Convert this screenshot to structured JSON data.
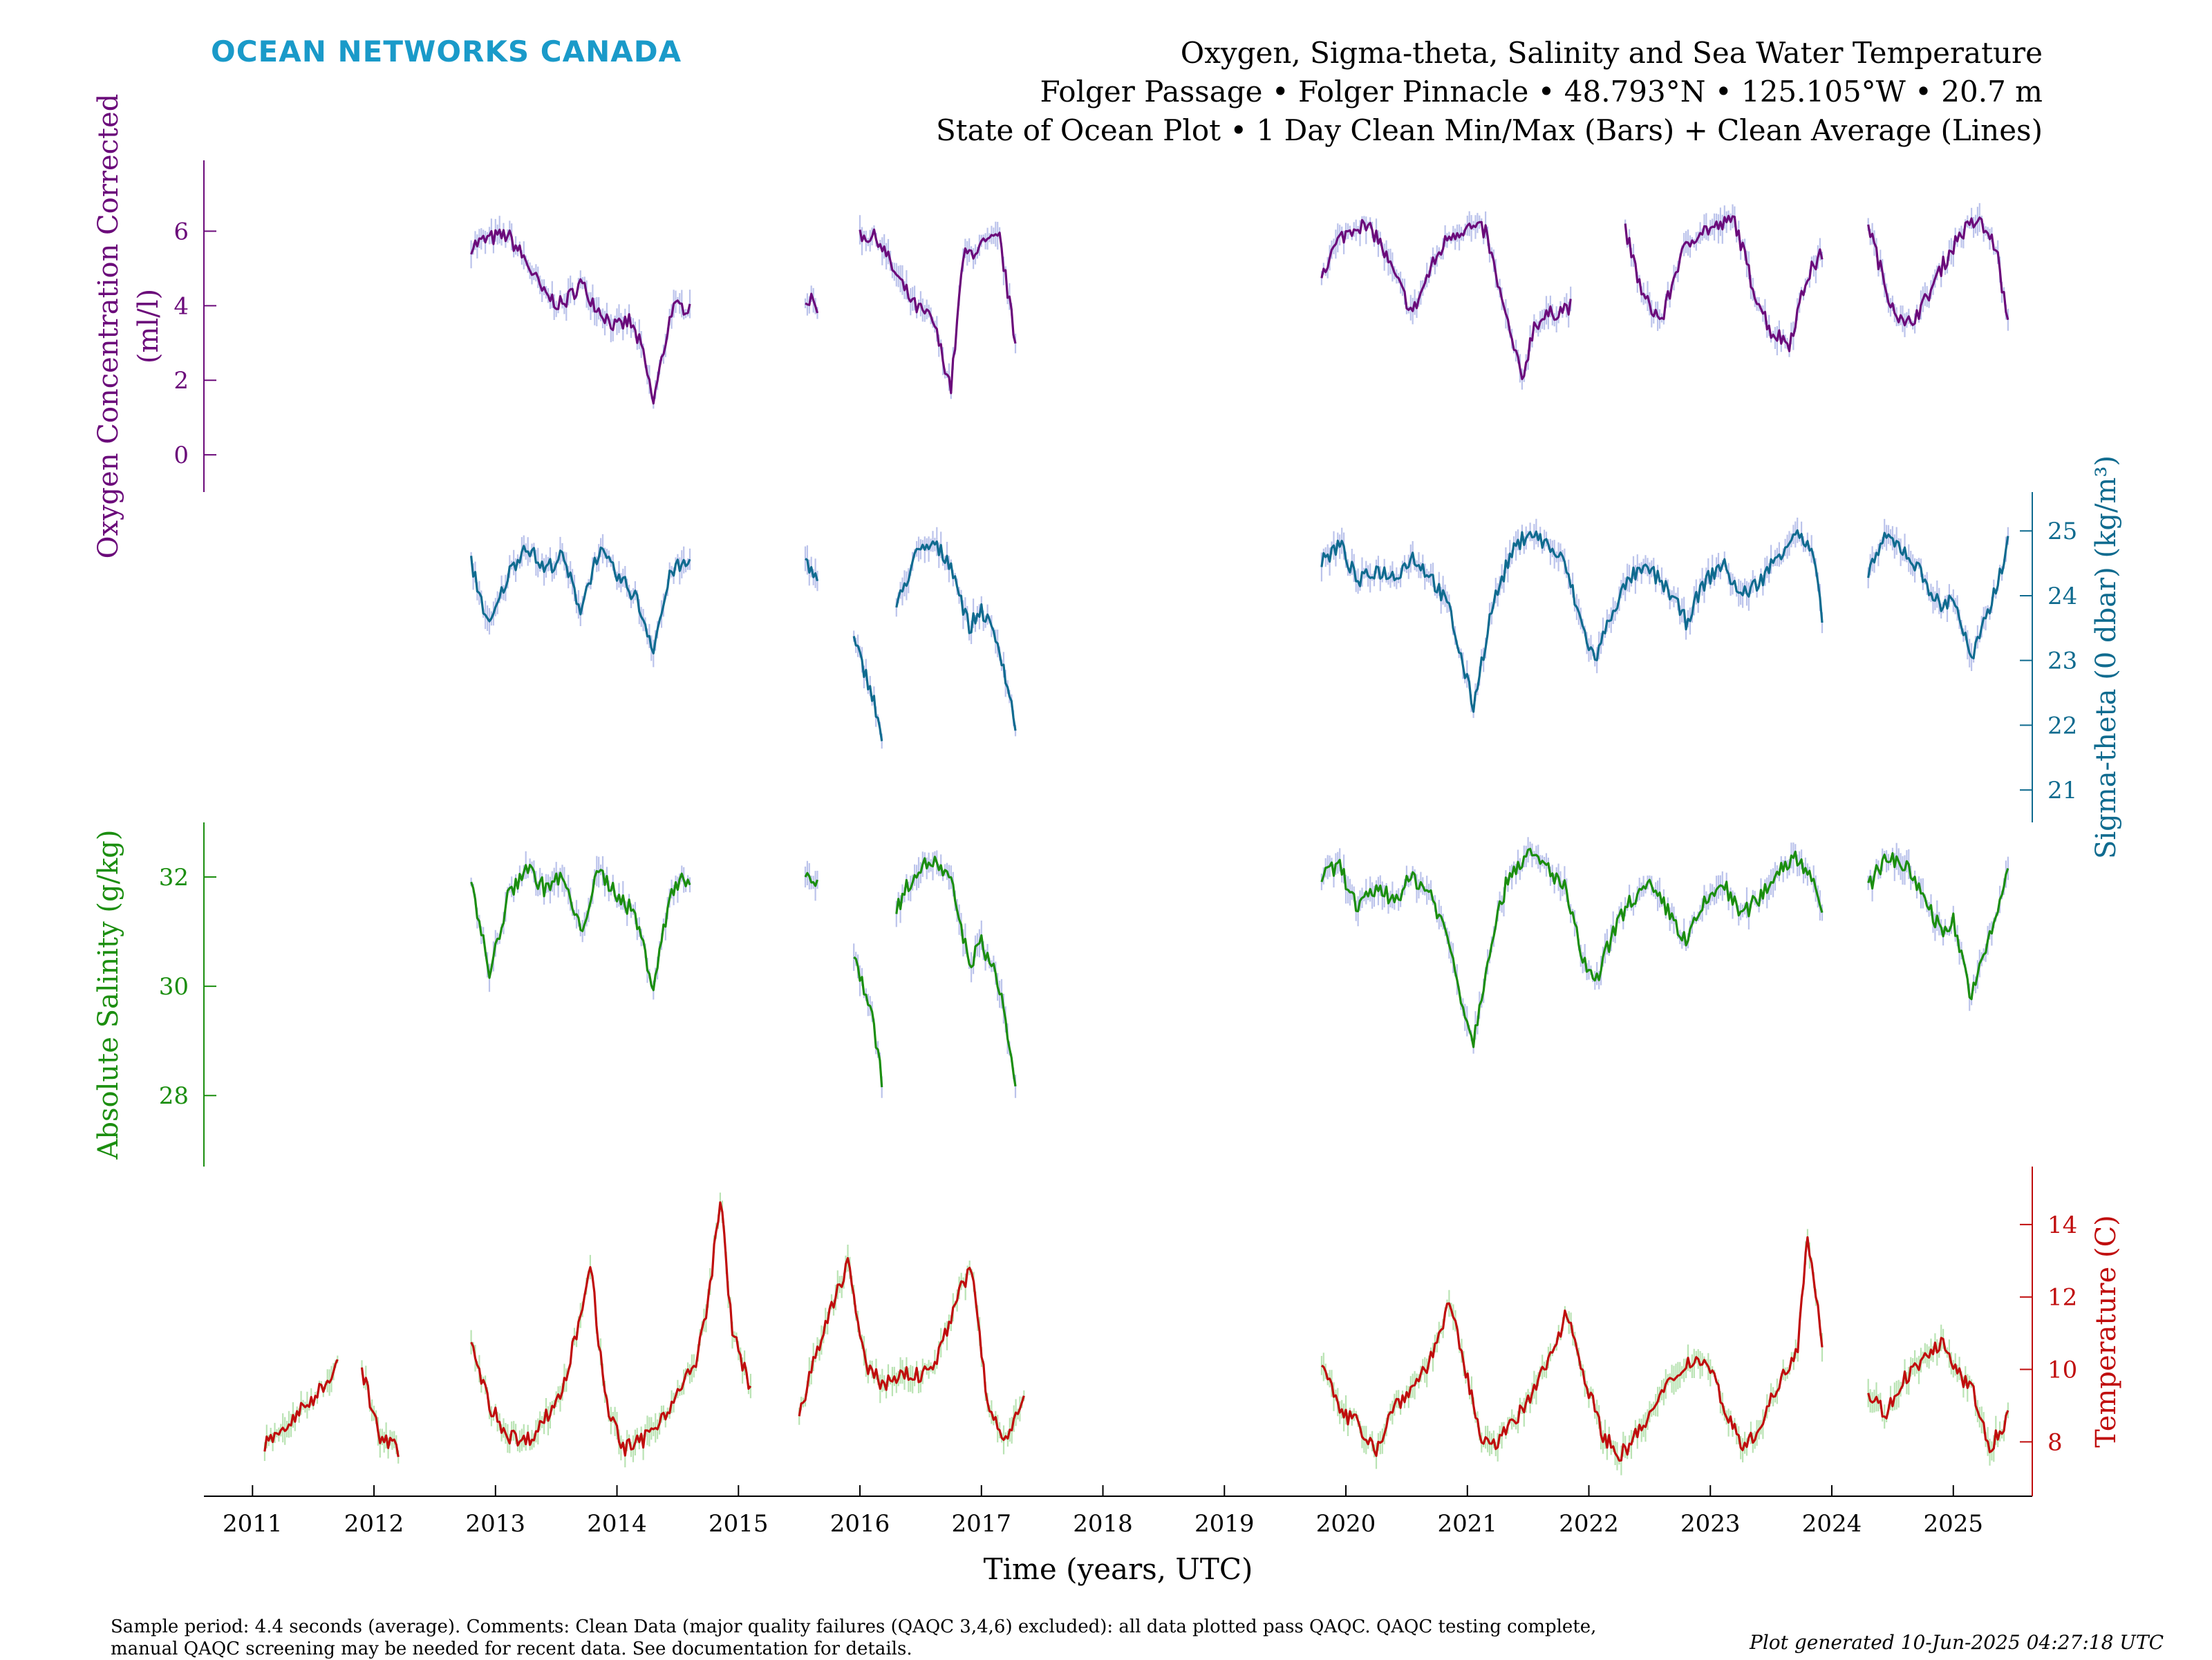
{
  "brand": {
    "text": "OCEAN NETWORKS CANADA",
    "color": "#1a9ac9"
  },
  "title": {
    "line1": "Oxygen, Sigma-theta, Salinity and Sea Water Temperature",
    "line2": "Folger Passage • Folger Pinnacle • 48.793°N • 125.105°W • 20.7 m",
    "line3": "State of Ocean Plot • 1 Day Clean Min/Max (Bars) + Clean Average (Lines)"
  },
  "footnote": {
    "line1": "Sample period: 4.4 seconds (average). Comments: Clean Data (major quality failures (QAQC 3,4,6) excluded): all data plotted pass QAQC. QAQC testing complete,",
    "line2": "manual QAQC screening may be needed for recent data. See documentation for details."
  },
  "generated": "Plot generated 10-Jun-2025 04:27:18 UTC",
  "chart_data": {
    "type": "line",
    "xlabel": "Time (years, UTC)",
    "xlim": [
      2010.6,
      2025.65
    ],
    "x_ticks": [
      "2011",
      "2012",
      "2013",
      "2014",
      "2015",
      "2016",
      "2017",
      "2018",
      "2019",
      "2020",
      "2021",
      "2022",
      "2023",
      "2024",
      "2025"
    ],
    "x_tick_values": [
      2011,
      2012,
      2013,
      2014,
      2015,
      2016,
      2017,
      2018,
      2019,
      2020,
      2021,
      2022,
      2023,
      2024,
      2025
    ],
    "grid": false,
    "panels": [
      {
        "name": "oxygen",
        "ylabel": "Oxygen Concentration Corrected (ml/l)",
        "ylabel_lines": [
          "Oxygen Concentration Corrected",
          "(ml/l)"
        ],
        "axis_side": "left",
        "color": "#6b0a7a",
        "band_color": "#aab4e6",
        "ylim": [
          -1,
          7.9
        ],
        "ticks": [
          0,
          2,
          4,
          6
        ],
        "tick_labels": [
          "0",
          "2",
          "4",
          "6"
        ],
        "series": [
          {
            "x": [
              2012.8,
              2012.95,
              2013.1,
              2013.25,
              2013.4,
              2013.55,
              2013.7,
              2013.85,
              2014.0,
              2014.1,
              2014.2,
              2014.3,
              2014.45,
              2014.6,
              null,
              2015.55,
              2015.65,
              null,
              2016.0,
              2016.15,
              2016.3,
              2016.45,
              2016.6,
              2016.75,
              2016.85,
              2017.0,
              2017.15,
              2017.28,
              null,
              2019.8,
              2019.95,
              2020.1,
              2020.25,
              2020.4,
              2020.55,
              2020.7,
              2020.85,
              2021.0,
              2021.15,
              2021.3,
              2021.45,
              2021.55,
              2021.7,
              2021.85,
              2021.95,
              null,
              2022.3,
              2022.45,
              2022.6,
              2022.75,
              2022.9,
              2023.05,
              2023.2,
              2023.35,
              2023.5,
              2023.65,
              2023.8,
              2023.92,
              null,
              2024.3,
              2024.45,
              2024.6,
              2024.75,
              2024.9,
              2025.05,
              2025.2,
              2025.35,
              2025.45
            ],
            "y": [
              5.6,
              5.8,
              5.9,
              5.2,
              4.3,
              4.0,
              4.6,
              3.9,
              3.4,
              3.6,
              2.9,
              1.4,
              3.9,
              4.0,
              null,
              4.2,
              4.0,
              null,
              5.9,
              5.8,
              4.8,
              4.0,
              3.6,
              1.8,
              5.3,
              5.6,
              5.8,
              3.0,
              null,
              4.9,
              5.8,
              6.2,
              5.9,
              4.8,
              3.8,
              5.0,
              5.9,
              6.1,
              6.0,
              3.9,
              2.0,
              3.5,
              3.8,
              4.0,
              null,
              null,
              6.0,
              4.2,
              3.6,
              5.3,
              6.0,
              6.1,
              6.3,
              4.5,
              3.3,
              3.0,
              4.8,
              5.4,
              null,
              6.2,
              4.4,
              3.4,
              4.0,
              5.0,
              5.9,
              6.3,
              5.6,
              3.5
            ],
            "segments_break_on_null": true
          }
        ]
      },
      {
        "name": "sigma-theta",
        "ylabel": "Sigma-theta (0 dbar) (kg/m³)",
        "axis_side": "right",
        "color": "#0f6b8f",
        "band_color": "#aab4e6",
        "ylim": [
          20.5,
          25.6
        ],
        "ticks": [
          21,
          22,
          23,
          24,
          25
        ],
        "tick_labels": [
          "21",
          "22",
          "23",
          "24",
          "25"
        ],
        "series": [
          {
            "x": [
              2012.8,
              2012.95,
              2013.1,
              2013.25,
              2013.4,
              2013.55,
              2013.7,
              2013.85,
              2014.0,
              2014.15,
              2014.3,
              2014.45,
              2014.6,
              null,
              2015.55,
              2015.65,
              null,
              2015.95,
              2016.1,
              2016.18,
              null,
              2016.3,
              2016.45,
              2016.6,
              2016.75,
              2016.9,
              2017.0,
              2017.15,
              2017.28,
              null,
              2019.8,
              2019.95,
              2020.1,
              2020.25,
              2020.4,
              2020.55,
              2020.7,
              2020.85,
              2020.98,
              2021.05,
              2021.2,
              2021.35,
              2021.5,
              2021.65,
              2021.8,
              2021.95,
              2022.05,
              2022.2,
              2022.35,
              2022.5,
              2022.65,
              2022.8,
              2022.95,
              2023.1,
              2023.25,
              2023.4,
              2023.55,
              2023.7,
              2023.85,
              2023.92,
              null,
              2024.3,
              2024.45,
              2024.6,
              2024.75,
              2024.9,
              2025.0,
              2025.15,
              2025.3,
              2025.45
            ],
            "y": [
              24.5,
              23.5,
              24.3,
              24.8,
              24.4,
              24.6,
              23.8,
              24.7,
              24.3,
              24.0,
              23.2,
              24.4,
              24.5,
              null,
              24.6,
              24.2,
              null,
              23.3,
              22.5,
              21.8,
              null,
              23.8,
              24.6,
              24.8,
              24.5,
              23.5,
              23.8,
              23.2,
              22.0,
              null,
              24.5,
              24.8,
              24.2,
              24.4,
              24.3,
              24.6,
              24.3,
              23.8,
              22.8,
              22.3,
              23.8,
              24.6,
              25.0,
              24.8,
              24.5,
              23.5,
              23.0,
              23.8,
              24.3,
              24.4,
              24.1,
              23.6,
              24.2,
              24.5,
              24.0,
              24.2,
              24.6,
              25.0,
              24.6,
              23.6,
              null,
              24.4,
              24.9,
              24.7,
              24.3,
              23.8,
              24.0,
              23.0,
              23.8,
              24.8
            ],
            "segments_break_on_null": true
          }
        ]
      },
      {
        "name": "salinity",
        "ylabel": "Absolute Salinity (g/kg)",
        "axis_side": "left",
        "color": "#1b8e0f",
        "band_color": "#aab4e6",
        "ylim": [
          26.7,
          33.0
        ],
        "ticks": [
          28,
          30,
          32
        ],
        "tick_labels": [
          "28",
          "30",
          "32"
        ],
        "series": [
          {
            "x": [
              2012.8,
              2012.95,
              2013.1,
              2013.25,
              2013.4,
              2013.55,
              2013.7,
              2013.85,
              2014.0,
              2014.15,
              2014.3,
              2014.45,
              2014.6,
              null,
              2015.55,
              2015.65,
              null,
              2015.95,
              2016.1,
              2016.18,
              null,
              2016.3,
              2016.45,
              2016.6,
              2016.75,
              2016.9,
              2017.0,
              2017.15,
              2017.28,
              null,
              2019.8,
              2019.95,
              2020.1,
              2020.25,
              2020.4,
              2020.55,
              2020.7,
              2020.85,
              2020.98,
              2021.05,
              2021.2,
              2021.35,
              2021.5,
              2021.65,
              2021.8,
              2021.95,
              2022.05,
              2022.2,
              2022.35,
              2022.5,
              2022.65,
              2022.8,
              2022.95,
              2023.1,
              2023.25,
              2023.4,
              2023.55,
              2023.7,
              2023.85,
              2023.92,
              null,
              2024.3,
              2024.45,
              2024.6,
              2024.75,
              2024.9,
              2025.0,
              2025.15,
              2025.3,
              2025.45
            ],
            "y": [
              32.0,
              30.2,
              31.6,
              32.2,
              31.8,
              32.0,
              31.0,
              32.1,
              31.7,
              31.3,
              30.0,
              31.8,
              32.0,
              null,
              32.1,
              31.8,
              null,
              30.6,
              29.5,
              28.3,
              null,
              31.4,
              32.1,
              32.3,
              31.9,
              30.4,
              30.8,
              30.0,
              28.2,
              null,
              32.0,
              32.2,
              31.4,
              31.8,
              31.6,
              32.0,
              31.7,
              30.8,
              29.5,
              29.0,
              30.9,
              32.1,
              32.4,
              32.2,
              31.8,
              30.5,
              30.0,
              31.0,
              31.6,
              31.8,
              31.4,
              30.8,
              31.5,
              31.9,
              31.3,
              31.6,
              32.1,
              32.4,
              32.0,
              31.2,
              null,
              31.8,
              32.4,
              32.2,
              31.7,
              31.0,
              31.2,
              29.8,
              30.9,
              32.1
            ],
            "segments_break_on_null": true
          }
        ]
      },
      {
        "name": "temperature",
        "ylabel": "Temperature (C)",
        "axis_side": "right",
        "color": "#c00d0d",
        "band_color": "#a8dca0",
        "ylim": [
          6.5,
          15.6
        ],
        "ticks": [
          8,
          10,
          12,
          14
        ],
        "tick_labels": [
          "8",
          "10",
          "12",
          "14"
        ],
        "series": [
          {
            "x": [
              2011.1,
              2011.3,
              2011.5,
              2011.7,
              null,
              2011.9,
              2012.05,
              2012.2,
              null,
              2012.8,
              2012.95,
              2013.1,
              2013.25,
              2013.4,
              2013.55,
              2013.7,
              2013.78,
              2013.9,
              2014.05,
              2014.2,
              2014.35,
              2014.5,
              2014.65,
              2014.75,
              2014.85,
              2014.95,
              2015.1,
              null,
              2015.5,
              2015.65,
              2015.8,
              2015.9,
              2016.05,
              2016.2,
              2016.35,
              2016.5,
              2016.65,
              2016.8,
              2016.92,
              2017.05,
              2017.2,
              2017.35,
              null,
              2019.8,
              2019.95,
              2020.1,
              2020.25,
              2020.4,
              2020.55,
              2020.7,
              2020.85,
              2020.97,
              2021.1,
              2021.25,
              2021.4,
              2021.55,
              2021.7,
              2021.82,
              2021.95,
              2022.1,
              2022.25,
              2022.4,
              2022.55,
              2022.7,
              2022.85,
              2023.0,
              2023.15,
              2023.3,
              2023.45,
              2023.6,
              2023.72,
              2023.8,
              2023.92,
              null,
              2024.3,
              2024.45,
              2024.6,
              2024.75,
              2024.9,
              2025.0,
              2025.15,
              2025.3,
              2025.45
            ],
            "y": [
              7.9,
              8.5,
              9.2,
              10.1,
              null,
              10.0,
              8.1,
              7.8,
              null,
              10.7,
              9.0,
              8.2,
              8.0,
              8.6,
              9.4,
              11.5,
              13.0,
              9.2,
              7.8,
              8.0,
              8.6,
              9.3,
              10.2,
              11.8,
              14.8,
              11.0,
              9.5,
              null,
              8.8,
              10.5,
              12.0,
              13.0,
              10.0,
              9.6,
              9.9,
              9.8,
              10.4,
              12.0,
              12.8,
              9.0,
              8.0,
              9.4,
              null,
              10.3,
              8.8,
              8.5,
              7.8,
              9.0,
              9.5,
              10.3,
              11.8,
              10.2,
              8.2,
              8.0,
              8.6,
              9.4,
              10.5,
              11.6,
              10.0,
              8.3,
              7.6,
              8.2,
              9.0,
              9.8,
              10.3,
              10.1,
              8.6,
              7.8,
              8.8,
              9.8,
              10.7,
              13.8,
              10.8,
              null,
              9.3,
              8.8,
              9.8,
              10.2,
              10.8,
              10.0,
              9.5,
              7.8,
              8.7
            ],
            "segments_break_on_null": true
          }
        ]
      }
    ]
  }
}
